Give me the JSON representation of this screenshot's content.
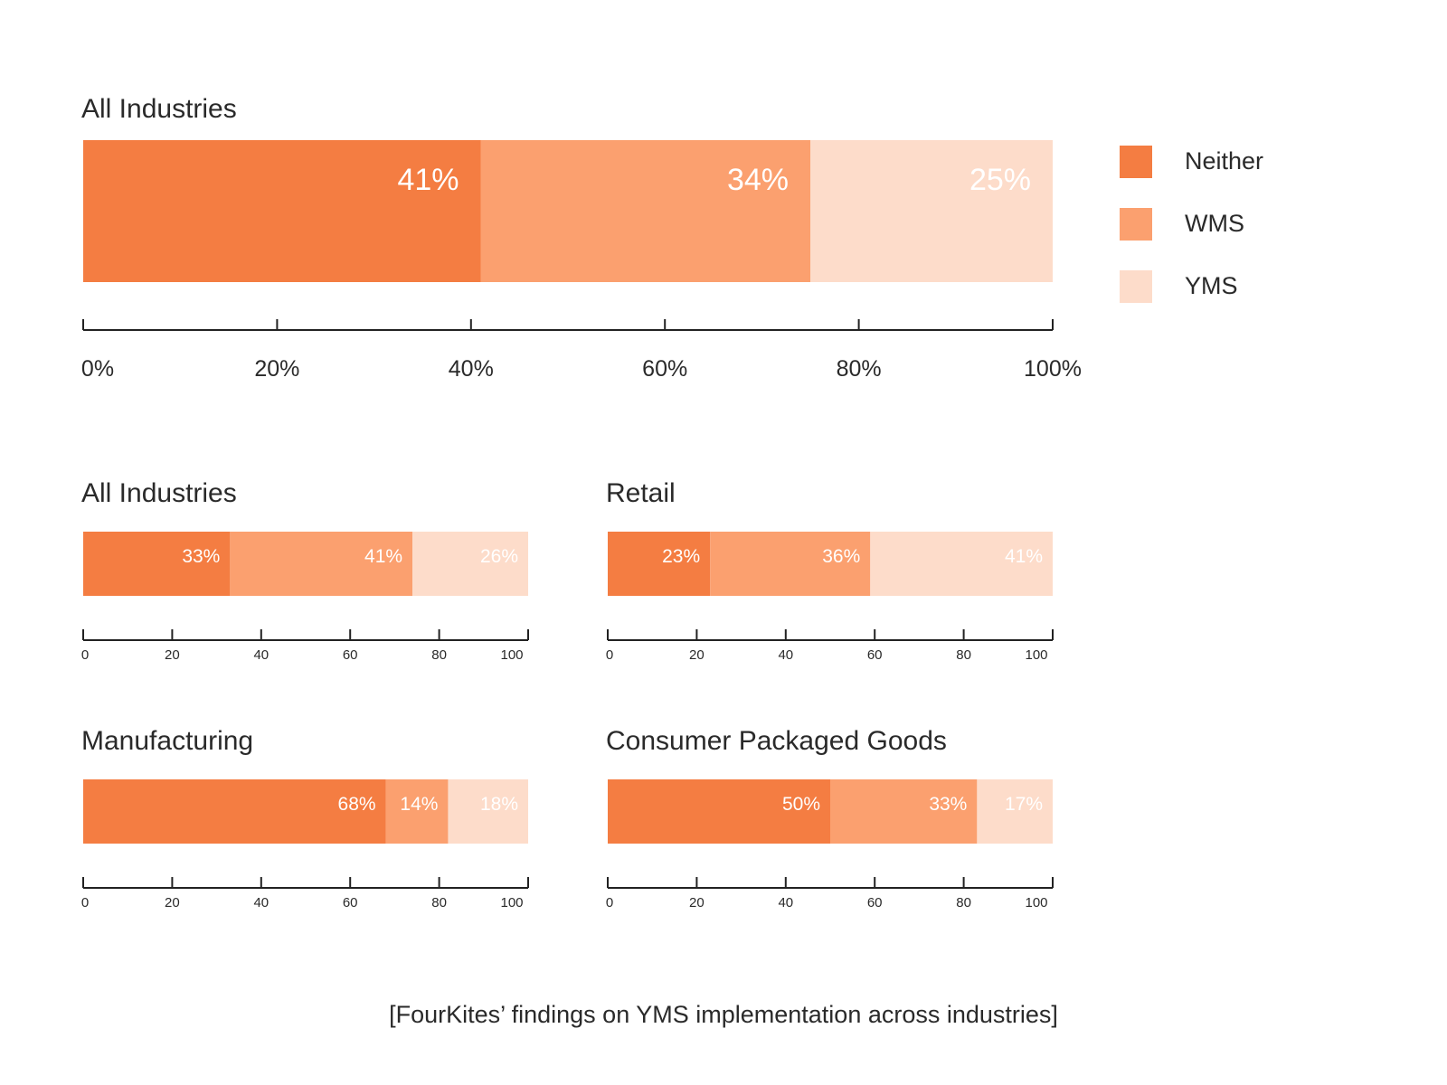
{
  "chart_data": [
    {
      "type": "bar",
      "orientation": "horizontal-stacked-100",
      "title": "All Industries",
      "series": [
        {
          "name": "Neither",
          "values": [
            41
          ]
        },
        {
          "name": "WMS",
          "values": [
            34
          ]
        },
        {
          "name": "YMS",
          "values": [
            25
          ]
        }
      ],
      "data_labels": [
        "41%",
        "34%",
        "25%"
      ],
      "xlim": [
        0,
        100
      ],
      "ticks": [
        "0%",
        "20%",
        "40%",
        "60%",
        "80%",
        "100%"
      ],
      "legend": "right"
    },
    {
      "type": "bar",
      "orientation": "horizontal-stacked-100",
      "title": "All Industries",
      "series": [
        {
          "name": "Neither",
          "values": [
            33
          ]
        },
        {
          "name": "WMS",
          "values": [
            41
          ]
        },
        {
          "name": "YMS",
          "values": [
            26
          ]
        }
      ],
      "data_labels": [
        "33%",
        "41%",
        "26%"
      ],
      "xlim": [
        0,
        100
      ],
      "ticks": [
        "0",
        "20",
        "40",
        "60",
        "80",
        "100"
      ]
    },
    {
      "type": "bar",
      "orientation": "horizontal-stacked-100",
      "title": "Retail",
      "series": [
        {
          "name": "Neither",
          "values": [
            23
          ]
        },
        {
          "name": "WMS",
          "values": [
            36
          ]
        },
        {
          "name": "YMS",
          "values": [
            41
          ]
        }
      ],
      "data_labels": [
        "23%",
        "36%",
        "41%"
      ],
      "xlim": [
        0,
        100
      ],
      "ticks": [
        "0",
        "20",
        "40",
        "60",
        "80",
        "100"
      ]
    },
    {
      "type": "bar",
      "orientation": "horizontal-stacked-100",
      "title": "Manufacturing",
      "series": [
        {
          "name": "Neither",
          "values": [
            68
          ]
        },
        {
          "name": "WMS",
          "values": [
            14
          ]
        },
        {
          "name": "YMS",
          "values": [
            18
          ]
        }
      ],
      "data_labels": [
        "68%",
        "14%",
        "18%"
      ],
      "xlim": [
        0,
        100
      ],
      "ticks": [
        "0",
        "20",
        "40",
        "60",
        "80",
        "100"
      ]
    },
    {
      "type": "bar",
      "orientation": "horizontal-stacked-100",
      "title": "Consumer Packaged Goods",
      "series": [
        {
          "name": "Neither",
          "values": [
            50
          ]
        },
        {
          "name": "WMS",
          "values": [
            33
          ]
        },
        {
          "name": "YMS",
          "values": [
            17
          ]
        }
      ],
      "data_labels": [
        "50%",
        "33%",
        "17%"
      ],
      "xlim": [
        0,
        100
      ],
      "ticks": [
        "0",
        "20",
        "40",
        "60",
        "80",
        "100"
      ]
    }
  ],
  "legend": {
    "items": [
      {
        "label": "Neither",
        "color": "#F47D42"
      },
      {
        "label": "WMS",
        "color": "#FBA06F"
      },
      {
        "label": "YMS",
        "color": "#FDDCCA"
      }
    ]
  },
  "colors": {
    "neither": "#F47D42",
    "wms": "#FBA06F",
    "yms": "#FDDCCA",
    "axis": "#222222"
  },
  "caption": "[FourKites’ findings on YMS implementation across industries]"
}
